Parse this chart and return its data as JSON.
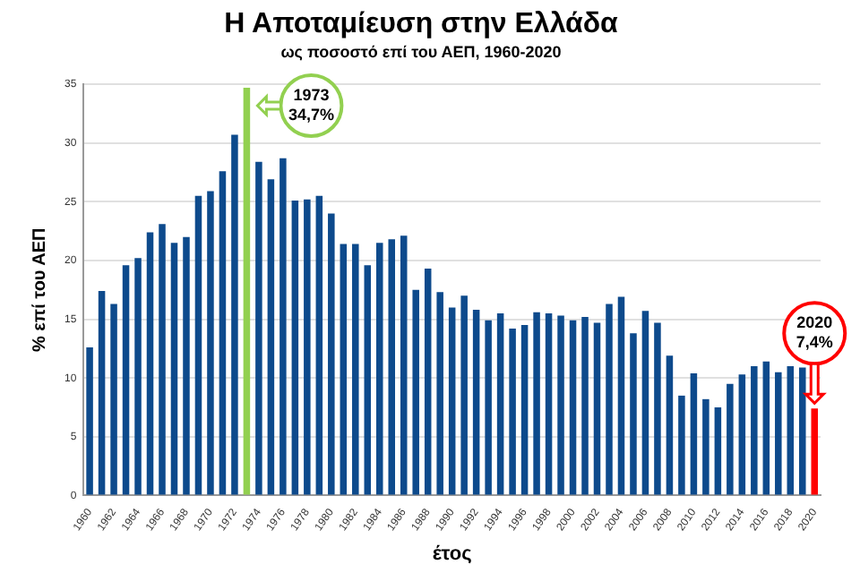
{
  "chart_data": {
    "type": "bar",
    "title": "Η Αποταμίευση στην Ελλάδα",
    "subtitle": "ως ποσοστό επί του ΑΕΠ, 1960-2020",
    "xlabel": "έτος",
    "ylabel": "% επί του ΑΕΠ",
    "categories": [
      "1960",
      null,
      "1962",
      null,
      "1964",
      null,
      "1966",
      null,
      "1968",
      null,
      "1970",
      null,
      "1972",
      null,
      "1974",
      null,
      "1976",
      null,
      "1978",
      null,
      "1980",
      null,
      "1982",
      null,
      "1984",
      null,
      "1986",
      null,
      "1988",
      null,
      "1990",
      null,
      "1992",
      null,
      "1994",
      null,
      "1996",
      null,
      "1998",
      null,
      "2000",
      null,
      "2002",
      null,
      "2004",
      null,
      "2006",
      null,
      "2008",
      null,
      "2010",
      null,
      "2012",
      null,
      "2014",
      null,
      "2016",
      null,
      "2018",
      null,
      "2020"
    ],
    "values": [
      12.6,
      17.4,
      16.3,
      19.6,
      20.2,
      22.4,
      23.1,
      21.5,
      22.0,
      25.5,
      25.9,
      27.6,
      30.7,
      34.7,
      28.4,
      26.9,
      28.7,
      25.1,
      25.2,
      25.5,
      24.0,
      21.4,
      21.4,
      19.6,
      21.5,
      21.8,
      22.1,
      17.5,
      19.3,
      17.3,
      16.0,
      17.0,
      15.8,
      14.9,
      15.5,
      14.2,
      14.5,
      15.6,
      15.5,
      15.3,
      14.9,
      15.2,
      14.7,
      16.3,
      16.9,
      13.8,
      15.7,
      14.7,
      11.9,
      8.5,
      10.4,
      8.2,
      7.5,
      9.5,
      10.3,
      11.0,
      11.4,
      10.5,
      11.0,
      10.9,
      7.4
    ],
    "colors": [
      "#0d4a8c",
      "#0d4a8c",
      "#0d4a8c",
      "#0d4a8c",
      "#0d4a8c",
      "#0d4a8c",
      "#0d4a8c",
      "#0d4a8c",
      "#0d4a8c",
      "#0d4a8c",
      "#0d4a8c",
      "#0d4a8c",
      "#0d4a8c",
      "#92d050",
      "#0d4a8c",
      "#0d4a8c",
      "#0d4a8c",
      "#0d4a8c",
      "#0d4a8c",
      "#0d4a8c",
      "#0d4a8c",
      "#0d4a8c",
      "#0d4a8c",
      "#0d4a8c",
      "#0d4a8c",
      "#0d4a8c",
      "#0d4a8c",
      "#0d4a8c",
      "#0d4a8c",
      "#0d4a8c",
      "#0d4a8c",
      "#0d4a8c",
      "#0d4a8c",
      "#0d4a8c",
      "#0d4a8c",
      "#0d4a8c",
      "#0d4a8c",
      "#0d4a8c",
      "#0d4a8c",
      "#0d4a8c",
      "#0d4a8c",
      "#0d4a8c",
      "#0d4a8c",
      "#0d4a8c",
      "#0d4a8c",
      "#0d4a8c",
      "#0d4a8c",
      "#0d4a8c",
      "#0d4a8c",
      "#0d4a8c",
      "#0d4a8c",
      "#0d4a8c",
      "#0d4a8c",
      "#0d4a8c",
      "#0d4a8c",
      "#0d4a8c",
      "#0d4a8c",
      "#0d4a8c",
      "#0d4a8c",
      "#0d4a8c",
      "#ff0000"
    ],
    "ylim": [
      0,
      35
    ],
    "yticks": [
      0,
      5,
      10,
      15,
      20,
      25,
      30,
      35
    ],
    "grid": "y",
    "legend": false,
    "annotations": [
      "1973\n34,7%",
      "2020\n7,4%"
    ]
  }
}
